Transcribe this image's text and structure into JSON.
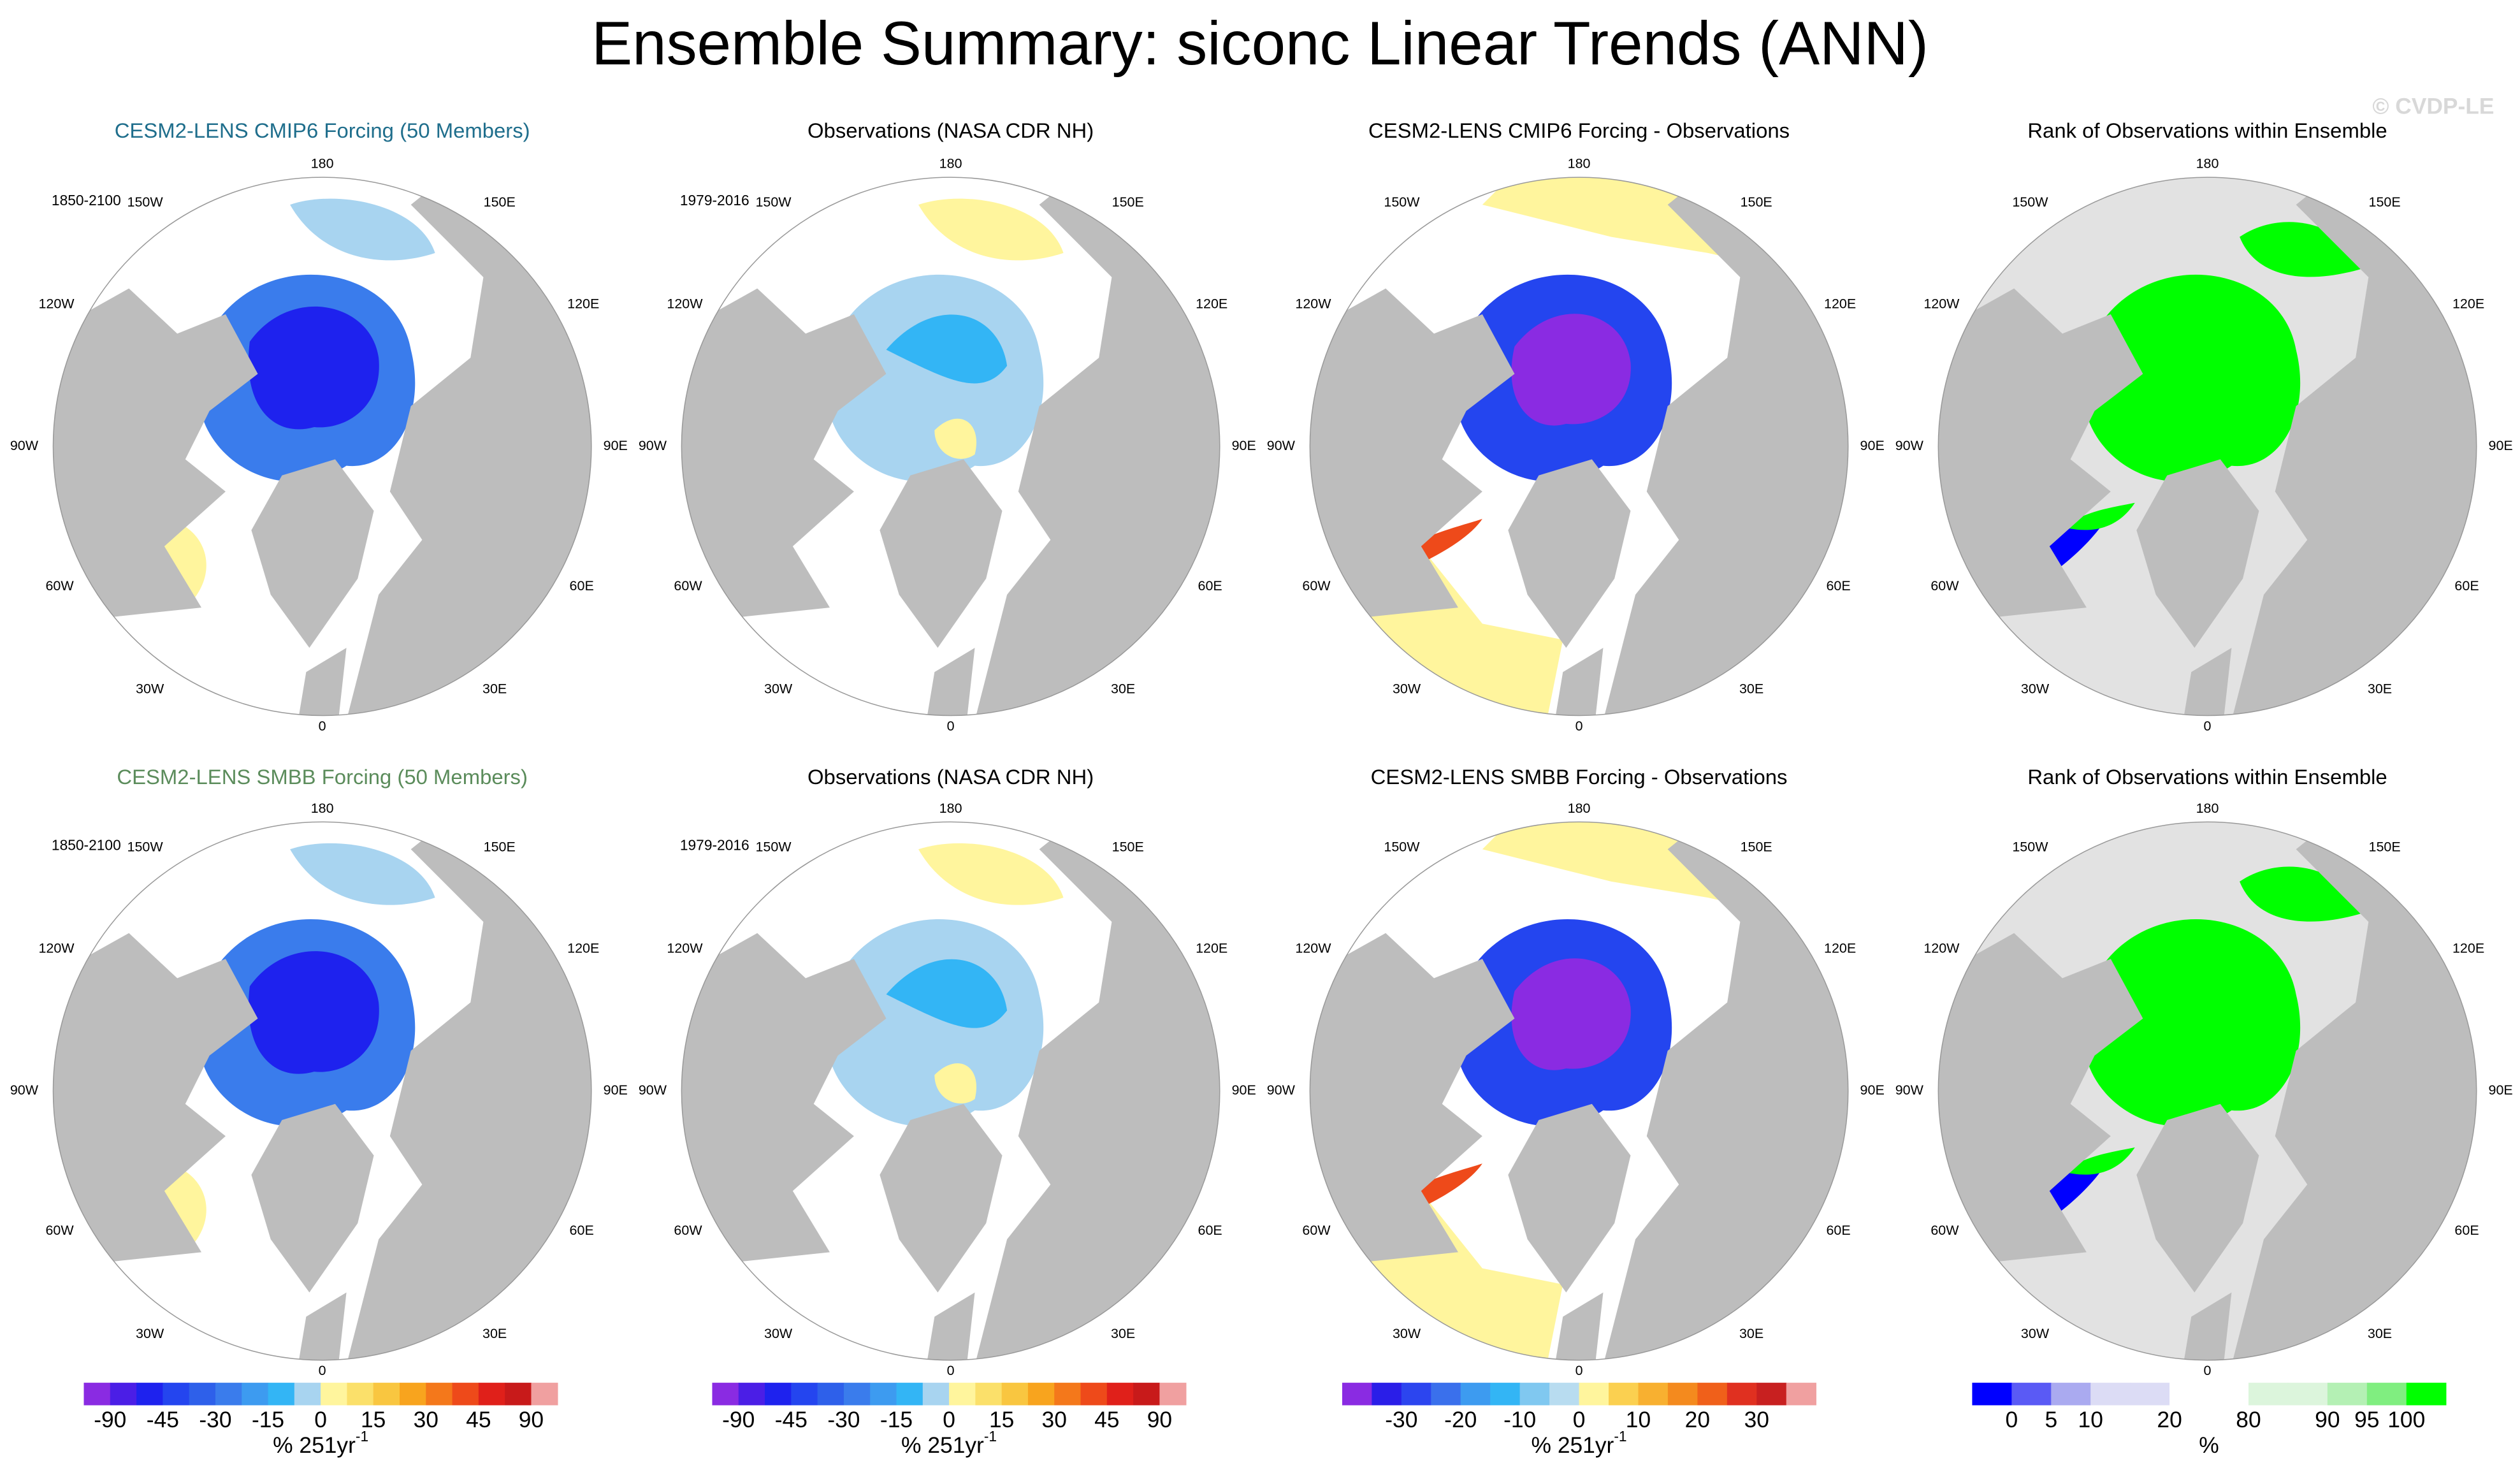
{
  "title": "Ensemble Summary: siconc Linear Trends (ANN)",
  "copyright": "© CVDP-LE",
  "longitude_labels": [
    "180",
    "150W",
    "150E",
    "120W",
    "120E",
    "90W",
    "90E",
    "60W",
    "60E",
    "30W",
    "30E",
    "0"
  ],
  "rows": [
    {
      "panels": [
        {
          "title": "CESM2-LENS CMIP6 Forcing (50 Members)",
          "period": "1850-2100"
        },
        {
          "title": "Observations (NASA CDR NH)",
          "period": "1979-2016"
        },
        {
          "title": "CESM2-LENS CMIP6 Forcing - Observations"
        },
        {
          "title": "Rank of Observations within Ensemble"
        }
      ]
    },
    {
      "panels": [
        {
          "title": "CESM2-LENS SMBB Forcing (50 Members)",
          "period": "1850-2100"
        },
        {
          "title": "Observations (NASA CDR NH)",
          "period": "1979-2016"
        },
        {
          "title": "CESM2-LENS SMBB Forcing - Observations"
        },
        {
          "title": "Rank of Observations within Ensemble"
        }
      ]
    }
  ],
  "colorbars": [
    {
      "colors": [
        "#8a2be2",
        "#4b1ee6",
        "#1e22ee",
        "#2445ef",
        "#2e60ea",
        "#3a7cec",
        "#3d9bf0",
        "#33b5f5",
        "#a8d4f0",
        "#fff59d",
        "#fbe06a",
        "#f9c640",
        "#f8a41e",
        "#f4781b",
        "#ee4a1a",
        "#e0201a",
        "#c81a1a",
        "#f0a0a0"
      ],
      "labels": [
        "-90",
        "-45",
        "-30",
        "-15",
        "0",
        "15",
        "30",
        "45",
        "90"
      ],
      "units": {
        "text": "% 251yr",
        "superscript": "-1"
      }
    },
    {
      "colors": [
        "#8a2be2",
        "#4b1ee6",
        "#1e22ee",
        "#2445ef",
        "#2e60ea",
        "#3a7cec",
        "#3d9bf0",
        "#33b5f5",
        "#a8d4f0",
        "#fff59d",
        "#fbe06a",
        "#f9c640",
        "#f8a41e",
        "#f4781b",
        "#ee4a1a",
        "#e0201a",
        "#c81a1a",
        "#f0a0a0"
      ],
      "labels": [
        "-90",
        "-45",
        "-30",
        "-15",
        "0",
        "15",
        "30",
        "45",
        "90"
      ],
      "units": {
        "text": "% 251yr",
        "superscript": "-1"
      }
    },
    {
      "colors": [
        "#8a2be2",
        "#2a1ee8",
        "#2c45ef",
        "#3a70ec",
        "#3d9bf0",
        "#33b5f5",
        "#80c8f0",
        "#b8dcf0",
        "#fff59d",
        "#fbd050",
        "#f8b030",
        "#f48a1e",
        "#f0601a",
        "#e03020",
        "#c82020",
        "#f0a0a0"
      ],
      "labels": [
        "-30",
        "-20",
        "-10",
        "0",
        "10",
        "20",
        "30"
      ],
      "units": {
        "text": "% 251yr",
        "superscript": "-1"
      }
    },
    {
      "colors": [
        "#0000ff",
        "#5a5af5",
        "#aaaaf0",
        "#dcdcf5",
        "#dcdcf5",
        "#ffffff",
        "#ffffff",
        "#dcf5dc",
        "#dcf5dc",
        "#b4f0b4",
        "#80ee80",
        "#00ff00"
      ],
      "labels": [
        "0",
        "5",
        "10",
        "20",
        "80",
        "90",
        "95",
        "100"
      ],
      "units": {
        "text": "%"
      }
    }
  ]
}
